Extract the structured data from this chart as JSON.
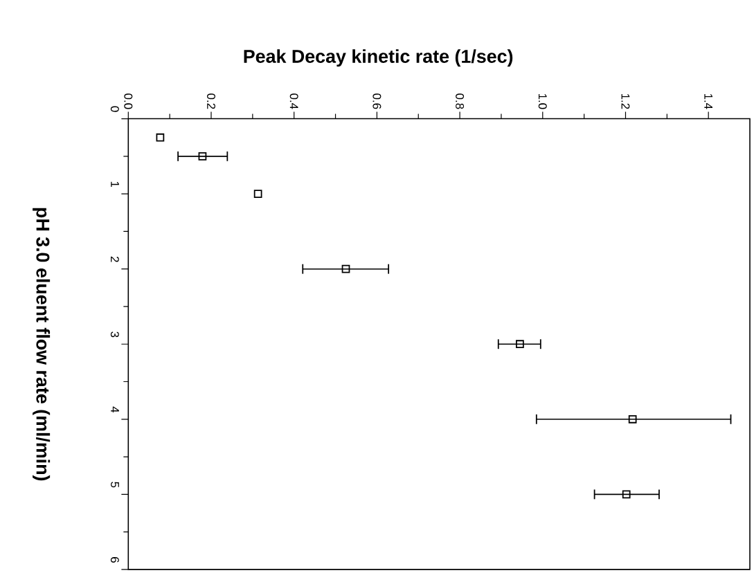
{
  "chart_data": {
    "type": "scatter",
    "xlabel": "Peak Decay kinetic rate (1/sec)",
    "ylabel": "pH 3.0 eluent flow rate  (ml/min)",
    "x": [
      0.077,
      0.179,
      0.313,
      0.525,
      0.945,
      1.217,
      1.202
    ],
    "values": [
      0.25,
      0.5,
      1,
      2,
      3,
      4,
      5
    ],
    "xerrors": [
      null,
      [
        0.12,
        0.239
      ],
      null,
      [
        0.421,
        0.628
      ],
      [
        0.893,
        0.995
      ],
      [
        0.985,
        1.454
      ],
      [
        1.125,
        1.281
      ]
    ],
    "color": "#000000",
    "marker": "square",
    "xlim": [
      0,
      1.5
    ],
    "xticks": [
      {
        "value": 0,
        "label": "0.0"
      },
      0.2,
      0.4,
      0.6,
      0.8,
      {
        "value": 1,
        "label": "1.0"
      },
      1.2,
      1.4
    ],
    "ylim": [
      6,
      0
    ],
    "yticks": [
      0,
      1,
      2,
      3,
      4,
      5,
      6
    ],
    "grid": false
  }
}
